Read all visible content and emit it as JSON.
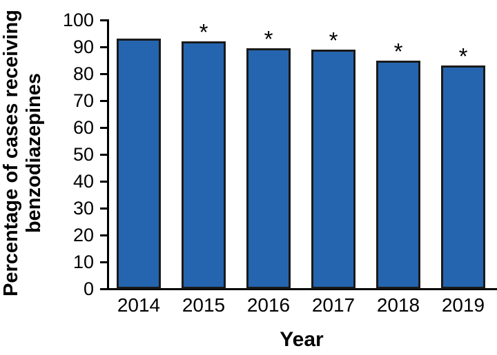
{
  "chart_data": {
    "type": "bar",
    "title": "",
    "xlabel": "Year",
    "ylabel": "Percentage of cases receiving benzodiazepines",
    "ylabel_lines": [
      "Percentage of cases receiving",
      "benzodiazepines"
    ],
    "categories": [
      "2014",
      "2015",
      "2016",
      "2017",
      "2018",
      "2019"
    ],
    "values": [
      93,
      92,
      89.5,
      89,
      85,
      83
    ],
    "annotations": [
      "",
      "*",
      "*",
      "*",
      "*",
      "*"
    ],
    "ylim": [
      0,
      100
    ],
    "ytick_step": 10,
    "ytick_labels": [
      "0",
      "10",
      "20",
      "30",
      "40",
      "50",
      "60",
      "70",
      "80",
      "90",
      "100"
    ],
    "grid": false,
    "legend": "none",
    "colors": {
      "bar_fill": "#2565af",
      "bar_border": "#1a1a1a",
      "axis": "#000000",
      "text": "#000000",
      "background": "#ffffff"
    }
  }
}
